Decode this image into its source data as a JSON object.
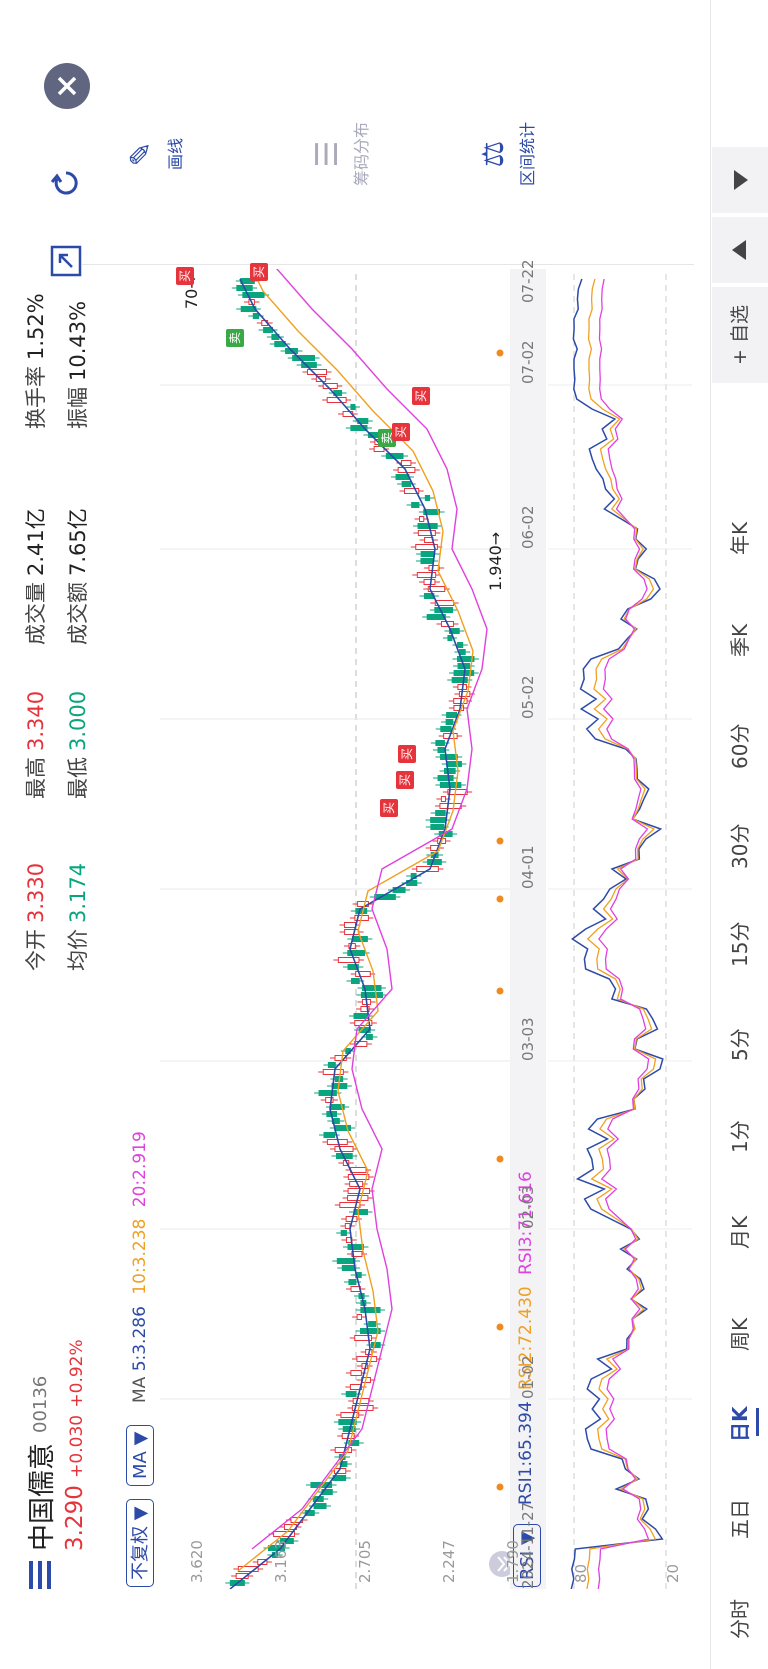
{
  "stock": {
    "name": "中国儒意",
    "code": "00136",
    "price": "3.290",
    "change": "+0.030",
    "change_pct": "+0.92%"
  },
  "stats": [
    {
      "label": "今开",
      "value": "3.330",
      "color": "red"
    },
    {
      "label": "均价",
      "value": "3.174",
      "color": "green"
    },
    {
      "label": "最高",
      "value": "3.340",
      "color": "red"
    },
    {
      "label": "最低",
      "value": "3.000",
      "color": "green"
    },
    {
      "label": "成交量",
      "value": "2.41亿",
      "color": "dark"
    },
    {
      "label": "成交额",
      "value": "7.65亿",
      "color": "dark"
    },
    {
      "label": "换手率",
      "value": "1.52%",
      "color": "dark"
    },
    {
      "label": "振幅",
      "value": "10.43%",
      "color": "dark"
    }
  ],
  "controls": {
    "adjust": "不复权 ▼",
    "ma_select": "MA ▼",
    "rsi_select": "RSI ▼"
  },
  "ma_legend": {
    "label": "MA",
    "ma5": "5:3.286",
    "ma10": "10:3.238",
    "ma20": "20:2.919"
  },
  "rsi_legend": {
    "rsi1": "RSI1:65.394",
    "rsi2": "RSI2:72.430",
    "rsi3": "RSI3:71.616"
  },
  "price_axis": [
    "3.620",
    "3.163",
    "2.705",
    "2.247",
    "1.790"
  ],
  "rsi_axis": [
    "80",
    "20"
  ],
  "dates": [
    "2024-11-27",
    "01-02",
    "02-03",
    "03-03",
    "04-01",
    "05-02",
    "06-02",
    "07-02",
    "07-22"
  ],
  "annotations": {
    "low": "1.940",
    "low_arrow": "→",
    "high_partial": "70",
    "high_arrow": "→"
  },
  "signals": [
    {
      "text": "买",
      "color": "#e5343c"
    },
    {
      "text": "买",
      "color": "#e5343c"
    },
    {
      "text": "买",
      "color": "#e5343c"
    },
    {
      "text": "卖",
      "color": "#3aa845"
    },
    {
      "text": "买",
      "color": "#e5343c"
    },
    {
      "text": "买",
      "color": "#e5343c"
    },
    {
      "text": "卖",
      "color": "#3aa845"
    },
    {
      "text": "买",
      "color": "#e5343c"
    },
    {
      "text": "买",
      "color": "#e5343c"
    }
  ],
  "tools": [
    {
      "label": "画线",
      "icon": "pen-line-icon",
      "glyph": "✎",
      "enabled": true
    },
    {
      "label": "筹码分布",
      "icon": "chip-distribution-icon",
      "glyph": "☰",
      "enabled": false
    },
    {
      "label": "区间统计",
      "icon": "interval-stats-icon",
      "glyph": "⚖",
      "enabled": true
    }
  ],
  "periods": [
    {
      "label": "分时",
      "active": false
    },
    {
      "label": "五日",
      "active": false
    },
    {
      "label": "日K",
      "active": true
    },
    {
      "label": "周K",
      "active": false
    },
    {
      "label": "月K",
      "active": false
    },
    {
      "label": "1分",
      "active": false
    },
    {
      "label": "5分",
      "active": false
    },
    {
      "label": "15分",
      "active": false
    },
    {
      "label": "30分",
      "active": false
    },
    {
      "label": "60分",
      "active": false
    },
    {
      "label": "季K",
      "active": false
    },
    {
      "label": "年K",
      "active": false
    }
  ],
  "add_watchlist": "+ 自选",
  "colors": {
    "up": "#e5343c",
    "down": "#0aa57e",
    "ma5": "#2c4aa8",
    "ma10": "#f0a020",
    "ma20": "#e040e0",
    "accent": "#2c4aa8"
  }
}
